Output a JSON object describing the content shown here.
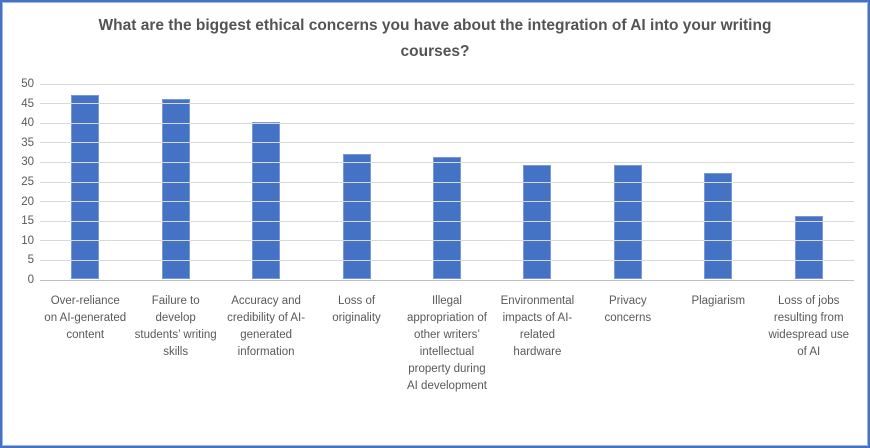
{
  "frame": {
    "border_color": "#4472C4",
    "background": "#FFFFFF"
  },
  "chart_data": {
    "type": "bar",
    "title": "What are the biggest ethical concerns you have about the integration of AI into your writing courses?",
    "categories": [
      "Over-reliance on AI-generated content",
      "Failure to develop students’ writing skills",
      "Accuracy and credibility of AI-generated information",
      "Loss of originality",
      "Illegal appropriation of other writers’ intellectual property during AI development",
      "Environmental impacts of AI-related hardware",
      "Privacy concerns",
      "Plagiarism",
      "Loss of jobs resulting from widespread use of AI"
    ],
    "values": [
      47,
      46,
      40,
      32,
      31,
      29,
      29,
      27,
      16
    ],
    "xlabel": "",
    "ylabel": "",
    "ylim": [
      0,
      50
    ],
    "yticks": [
      0,
      5,
      10,
      15,
      20,
      25,
      30,
      35,
      40,
      45,
      50
    ],
    "grid": true,
    "legend_position": "none",
    "bar_color": "#4472C4",
    "gridline_color": "#D9D9D9",
    "axis_text_color": "#595959",
    "title_color": "#545454"
  }
}
